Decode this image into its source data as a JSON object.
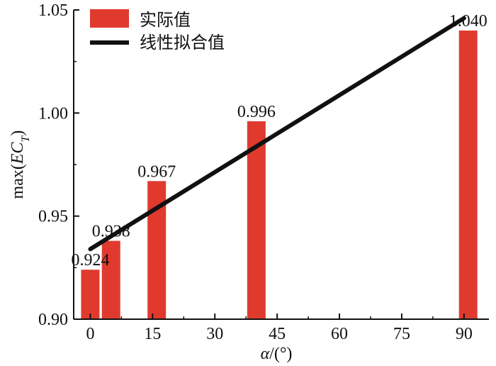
{
  "chart_data": {
    "type": "bar",
    "x_ticks": [
      0,
      15,
      30,
      45,
      60,
      75,
      90
    ],
    "y_ticks": [
      "0.90",
      "0.95",
      "1.00",
      "1.05"
    ],
    "xlim": [
      -4,
      96
    ],
    "ylim": [
      0.9,
      1.05
    ],
    "xlabel": {
      "italic": "α",
      "rest": "/(°)"
    },
    "ylabel": {
      "prefix": "max(",
      "italic": "EC",
      "subscript": "T",
      "suffix": ")"
    },
    "bar_color": "#e03a2f",
    "line_color": "#111111",
    "series": [
      {
        "name": "实际值",
        "type": "bar",
        "x": [
          0,
          5,
          16,
          40,
          91
        ],
        "values": [
          0.924,
          0.938,
          0.967,
          0.996,
          1.04
        ],
        "labels": [
          "0.924",
          "0.938",
          "0.967",
          "0.996",
          "1.040"
        ]
      },
      {
        "name": "线性拟合值",
        "type": "line",
        "x": [
          0,
          90
        ],
        "values": [
          0.934,
          1.046
        ]
      }
    ],
    "legend": "top-left",
    "grid": false
  }
}
